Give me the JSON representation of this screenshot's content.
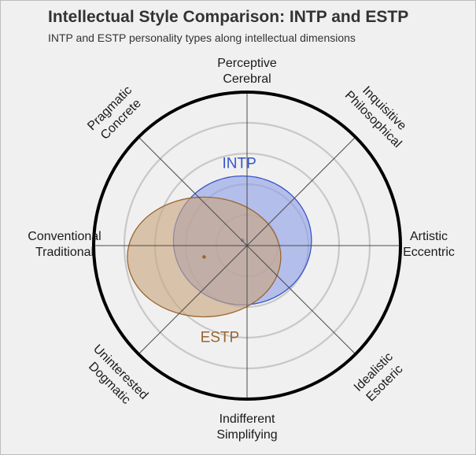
{
  "title": "Intellectual Style Comparison: INTP and ESTP",
  "subtitle": "INTP and ESTP personality types along intellectual dimensions",
  "chart_data": {
    "type": "polar-ellipse",
    "grid": true,
    "axes": [
      {
        "angle_deg": 90,
        "lines": [
          "Perceptive",
          "Cerebral"
        ]
      },
      {
        "angle_deg": 45,
        "lines": [
          "Inquisitive",
          "Philosophical"
        ]
      },
      {
        "angle_deg": 0,
        "lines": [
          "Artistic",
          "Eccentric"
        ]
      },
      {
        "angle_deg": -45,
        "lines": [
          "Idealistic",
          "Esoteric"
        ]
      },
      {
        "angle_deg": -90,
        "lines": [
          "Indifferent",
          "Simplifying"
        ]
      },
      {
        "angle_deg": -135,
        "lines": [
          "Uninterested",
          "Dogmatic"
        ]
      },
      {
        "angle_deg": 180,
        "lines": [
          "Conventional",
          "Traditional"
        ]
      },
      {
        "angle_deg": 135,
        "lines": [
          "Pragmatic",
          "Concrete"
        ]
      }
    ],
    "rlim": [
      0,
      5
    ],
    "rings": [
      1,
      2,
      3,
      4,
      5
    ],
    "series": [
      {
        "name": "INTP",
        "color": "#3755c7",
        "fill": "#8f9fe6",
        "center": {
          "x": -0.15,
          "y": 0.17
        },
        "radius_x": 2.25,
        "radius_y": 2.1
      },
      {
        "name": "ESTP",
        "color": "#9a6530",
        "fill": "#c9a67e",
        "center": {
          "x": -1.4,
          "y": -0.37
        },
        "radius_x": 2.5,
        "radius_y": 1.95
      }
    ]
  }
}
